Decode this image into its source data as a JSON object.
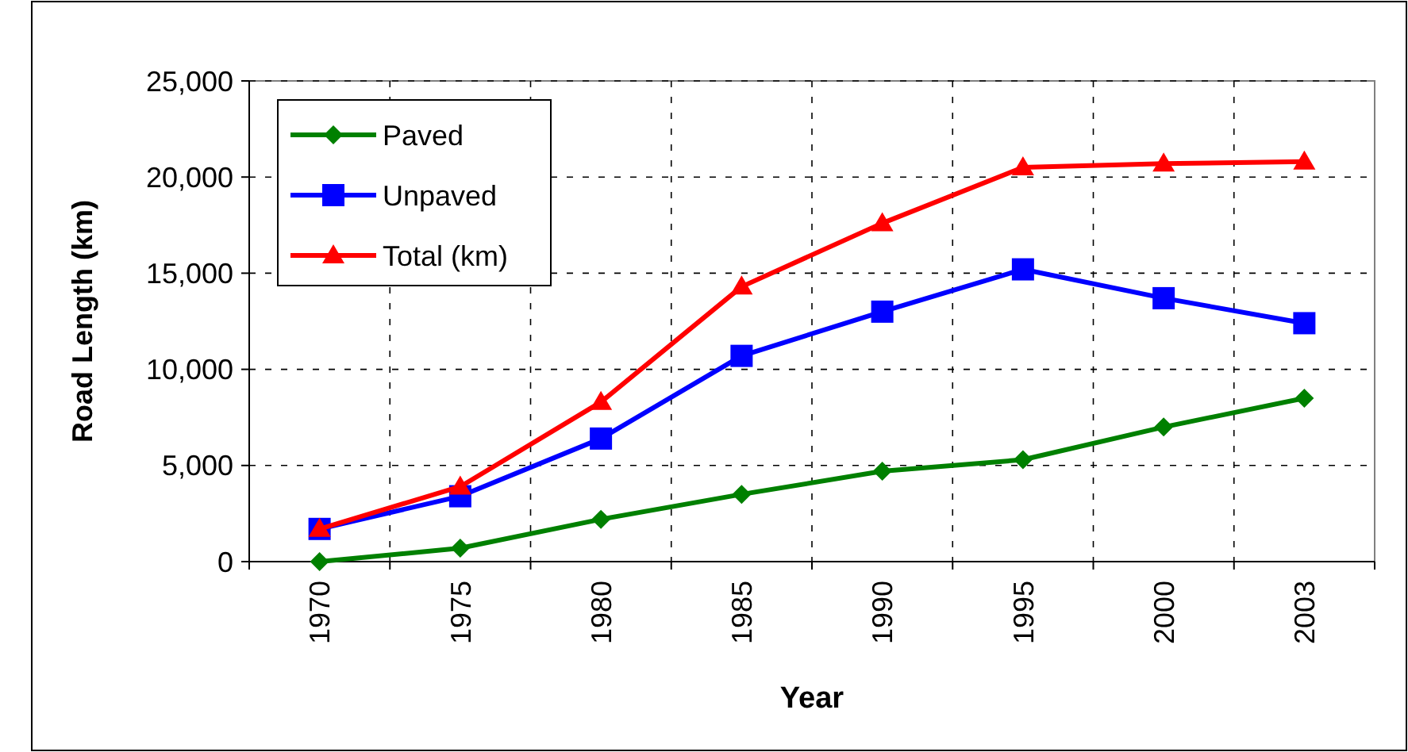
{
  "chart_data": {
    "type": "line",
    "xlabel": "Year",
    "ylabel": "Road Length (km)",
    "categories": [
      "1970",
      "1975",
      "1980",
      "1985",
      "1990",
      "1995",
      "2000",
      "2003"
    ],
    "series": [
      {
        "name": "Paved",
        "color": "#008000",
        "marker": "diamond",
        "values": [
          0,
          700,
          2200,
          3500,
          4700,
          5300,
          7000,
          8500
        ]
      },
      {
        "name": "Unpaved",
        "color": "#0000ff",
        "marker": "square",
        "values": [
          1700,
          3400,
          6400,
          10700,
          13000,
          15200,
          13700,
          12400
        ]
      },
      {
        "name": "Total (km)",
        "color": "#ff0000",
        "marker": "triangle",
        "values": [
          1700,
          3900,
          8300,
          14300,
          17600,
          20500,
          20700,
          20800
        ]
      }
    ],
    "ylim": [
      0,
      25000
    ],
    "yticks": [
      {
        "value": 0,
        "label": "0"
      },
      {
        "value": 5000,
        "label": "5,000"
      },
      {
        "value": 10000,
        "label": "10,000"
      },
      {
        "value": 15000,
        "label": "15,000"
      },
      {
        "value": 20000,
        "label": "20,000"
      },
      {
        "value": 25000,
        "label": "25,000"
      }
    ],
    "grid": true,
    "legend": "top left",
    "line_style": "solid"
  }
}
